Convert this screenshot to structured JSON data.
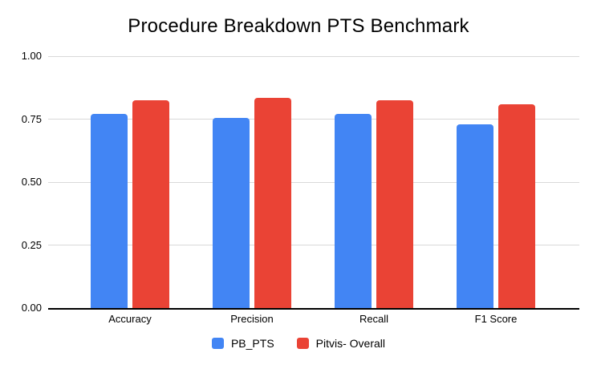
{
  "title": "Procedure Breakdown PTS Benchmark",
  "chart_data": {
    "type": "bar",
    "title": "Procedure Breakdown PTS Benchmark",
    "categories": [
      "Accuracy",
      "Precision",
      "Recall",
      "F1 Score"
    ],
    "series": [
      {
        "name": "PB_PTS",
        "color": "#4285F4",
        "values": [
          0.77,
          0.755,
          0.77,
          0.73
        ]
      },
      {
        "name": "Pitvis- Overall",
        "color": "#EA4335",
        "values": [
          0.825,
          0.835,
          0.825,
          0.81
        ]
      }
    ],
    "ylim": [
      0,
      1.0
    ],
    "ytick_labels": [
      "0.00",
      "0.25",
      "0.50",
      "0.75",
      "1.00"
    ],
    "yticks": [
      0.0,
      0.25,
      0.5,
      0.75,
      1.0
    ],
    "grid": true,
    "legend_position": "bottom",
    "colors": {
      "background": "#ffffff",
      "gridline": "#d9d9d9",
      "axis": "#000000",
      "text": "#000000"
    }
  }
}
